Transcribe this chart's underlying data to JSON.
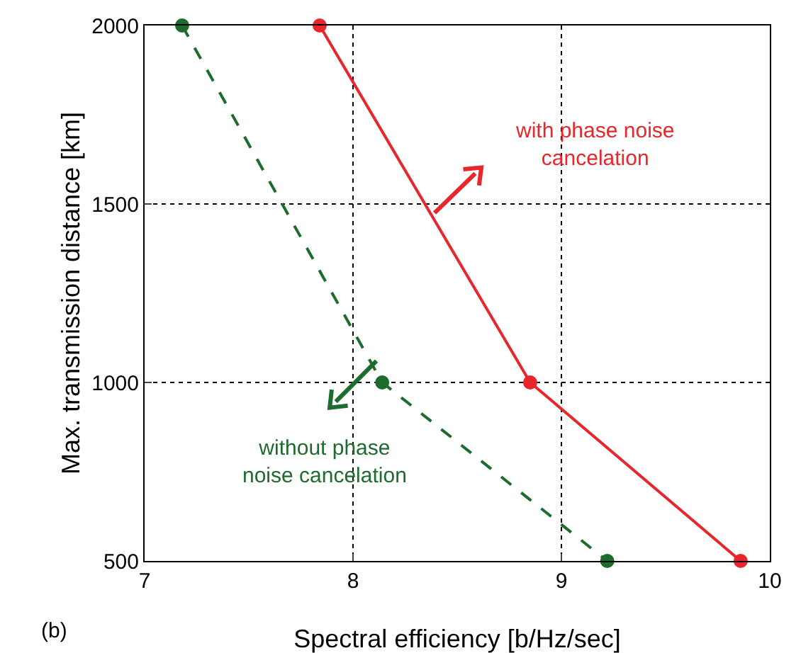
{
  "chart_data": {
    "type": "line",
    "xlabel": "Spectral efficiency [b/Hz/sec]",
    "ylabel": "Max. transmission distance [km]",
    "xlim": [
      7,
      10
    ],
    "xticks": [
      7,
      8,
      9,
      10
    ],
    "ylim": [
      500,
      2000
    ],
    "yticks": [
      500,
      1000,
      1500,
      2000
    ],
    "grid": true,
    "marker": "circle",
    "series": [
      {
        "color": "#e8262b",
        "line_style": "solid",
        "x": [
          7.84,
          8.85,
          9.86
        ],
        "values": [
          2000,
          1000,
          500
        ]
      },
      {
        "color": "#1e6b2e",
        "line_style": "dashed",
        "x": [
          7.18,
          8.14,
          9.22
        ],
        "values": [
          2000,
          1000,
          500
        ]
      }
    ],
    "annotations": [
      "with phase noise\ncancelation",
      "without phase\nnoise cancelation",
      "(b)"
    ]
  }
}
